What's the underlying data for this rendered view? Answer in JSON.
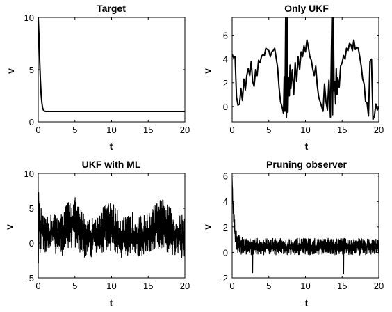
{
  "colors": {
    "line": "#000000",
    "axes": "#000000",
    "background": "#ffffff"
  },
  "chart_data": [
    {
      "id": "target",
      "type": "line",
      "title": "Target",
      "xlabel": "t",
      "ylabel": "v",
      "xlim": [
        0,
        20
      ],
      "ylim": [
        0,
        10
      ],
      "xticks": [
        0,
        5,
        10,
        15,
        20
      ],
      "yticks": [
        0,
        5,
        10
      ],
      "grid": false,
      "series": [
        {
          "kind": "decay",
          "x": [
            0,
            0.1,
            0.2,
            0.3,
            0.4,
            0.5,
            0.6,
            0.7,
            0.8,
            1.0,
            2.0,
            5.0,
            10.0,
            15.0,
            20.0
          ],
          "y": [
            10.0,
            8.2,
            5.8,
            3.9,
            2.6,
            1.8,
            1.35,
            1.15,
            1.05,
            1.0,
            1.0,
            1.0,
            1.0,
            1.0,
            1.0
          ]
        }
      ]
    },
    {
      "id": "only-ukf",
      "type": "line",
      "title": "Only UKF",
      "xlabel": "t",
      "ylabel": "v",
      "xlim": [
        0,
        20
      ],
      "ylim": [
        -1.3,
        7.5
      ],
      "xticks": [
        0,
        5,
        10,
        15,
        20
      ],
      "yticks": [
        0,
        2,
        4,
        6
      ],
      "grid": false,
      "series": [
        {
          "kind": "wave",
          "x": [
            0,
            0.2,
            0.4,
            0.6,
            0.8,
            1.0,
            1.2,
            1.4,
            1.6,
            1.8,
            2.0,
            2.2,
            2.4,
            2.6,
            2.8,
            3.0,
            3.2,
            3.4,
            3.6,
            3.8,
            4.0,
            4.2,
            4.4,
            4.6,
            4.8,
            5.0,
            5.2,
            5.4,
            5.6,
            5.8,
            6.0,
            6.2,
            6.4,
            6.6,
            6.8,
            7.0,
            7.1,
            7.2,
            7.3,
            7.4,
            7.5,
            7.6,
            7.7,
            7.8,
            7.9,
            8.0,
            8.2,
            8.4,
            8.6,
            8.8,
            9.0,
            9.2,
            9.4,
            9.6,
            9.8,
            10.0,
            10.2,
            10.4,
            10.6,
            10.8,
            11.0,
            11.2,
            11.4,
            11.6,
            11.8,
            12.0,
            12.2,
            12.4,
            12.6,
            12.8,
            13.0,
            13.2,
            13.4,
            13.6,
            13.7,
            13.8,
            13.9,
            14.0,
            14.1,
            14.2,
            14.3,
            14.4,
            14.6,
            14.8,
            15.0,
            15.2,
            15.4,
            15.6,
            15.8,
            16.0,
            16.2,
            16.4,
            16.6,
            16.8,
            17.0,
            17.2,
            17.4,
            17.6,
            17.8,
            18.0,
            18.2,
            18.4,
            18.6,
            18.8,
            19.0,
            19.2,
            19.4,
            19.6,
            19.8,
            20.0
          ],
          "y": [
            4.4,
            4.1,
            4.2,
            0.8,
            0.1,
            0.2,
            1.5,
            0.5,
            2.3,
            1.4,
            2.6,
            3.2,
            2.6,
            3.8,
            2.1,
            1.7,
            3.1,
            2.6,
            3.9,
            3.7,
            4.2,
            4.4,
            4.3,
            4.9,
            4.8,
            4.7,
            4.2,
            4.6,
            4.7,
            4.9,
            4.1,
            3.3,
            1.6,
            0.4,
            0.0,
            -0.6,
            2.5,
            -0.4,
            7.5,
            -0.9,
            7.5,
            -0.5,
            2.4,
            0.9,
            3.5,
            1.5,
            3.1,
            1.0,
            3.7,
            2.1,
            4.2,
            3.1,
            4.6,
            4.2,
            5.1,
            4.6,
            5.6,
            5.0,
            4.2,
            3.9,
            3.1,
            2.6,
            3.4,
            1.8,
            0.8,
            0.4,
            0.0,
            -0.4,
            1.9,
            0.4,
            -0.3,
            2.2,
            -0.9,
            7.5,
            -0.7,
            7.5,
            1.3,
            2.1,
            0.2,
            3.2,
            1.0,
            2.4,
            1.6,
            3.4,
            3.7,
            4.3,
            4.0,
            4.9,
            4.7,
            5.3,
            5.2,
            4.7,
            5.6,
            4.8,
            5.0,
            4.9,
            4.2,
            3.4,
            2.3,
            1.9,
            0.4,
            0.3,
            -0.8,
            3.8,
            4.0,
            -1.1,
            -0.8,
            0.2,
            -0.3,
            0.0
          ]
        }
      ]
    },
    {
      "id": "ukf-ml",
      "type": "line",
      "title": "UKF with ML",
      "xlabel": "t",
      "ylabel": "v",
      "xlim": [
        0,
        20
      ],
      "ylim": [
        -5,
        10
      ],
      "xticks": [
        0,
        5,
        10,
        15,
        20
      ],
      "yticks": [
        -5,
        0,
        5,
        10
      ],
      "grid": false,
      "series": [
        {
          "kind": "noisy",
          "x": [
            0,
            0.5,
            1,
            2,
            3,
            4,
            5,
            6,
            7,
            8,
            9,
            10,
            11,
            12,
            13,
            14,
            15,
            16,
            17,
            18,
            19,
            20
          ],
          "y": [
            2.0,
            1.8,
            1.0,
            1.6,
            0.9,
            2.6,
            2.9,
            1.3,
            0.7,
            1.0,
            2.2,
            2.5,
            1.1,
            0.6,
            1.3,
            1.0,
            1.3,
            2.4,
            2.7,
            1.6,
            1.0,
            0.6
          ],
          "spread": [
            6.0,
            2.5,
            2.5,
            2.8,
            3.1,
            3.5,
            3.7,
            3.4,
            2.9,
            2.8,
            3.4,
            3.7,
            3.2,
            3.0,
            3.4,
            2.9,
            2.9,
            3.4,
            3.7,
            3.5,
            3.0,
            3.5
          ]
        }
      ]
    },
    {
      "id": "pruning-observer",
      "type": "line",
      "title": "Pruning observer",
      "xlabel": "t",
      "ylabel": "v",
      "xlim": [
        0,
        20
      ],
      "ylim": [
        -2,
        6.2
      ],
      "xticks": [
        0,
        5,
        10,
        15,
        20
      ],
      "yticks": [
        -2,
        0,
        2,
        4,
        6
      ],
      "grid": false,
      "series": [
        {
          "kind": "noisy-decay",
          "x": [
            0,
            0.1,
            0.2,
            0.3,
            0.5,
            0.8,
            1.2,
            2,
            5,
            10,
            15,
            20
          ],
          "y": [
            5.8,
            4.2,
            3.0,
            2.0,
            1.2,
            0.7,
            0.5,
            0.45,
            0.45,
            0.45,
            0.45,
            0.45
          ],
          "spread": [
            0.3,
            0.8,
            0.9,
            0.9,
            0.9,
            0.8,
            0.7,
            0.65,
            0.65,
            0.65,
            0.65,
            0.65
          ],
          "spikes": [
            {
              "x": 2.8,
              "y": -1.6
            },
            {
              "x": 15.2,
              "y": -1.7
            }
          ]
        }
      ]
    }
  ]
}
